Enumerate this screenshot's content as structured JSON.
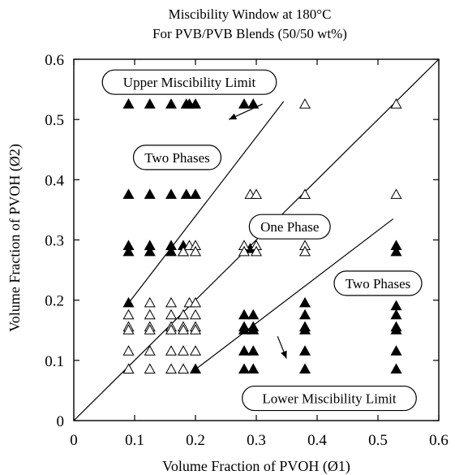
{
  "chart_data": {
    "type": "scatter",
    "title": [
      "Miscibility Window at 180°C",
      "For PVB/PVB Blends (50/50 wt%)"
    ],
    "xlabel": "Volume Fraction of PVOH (Ø1)",
    "ylabel": "Volume Fraction of PVOH (Ø2)",
    "xlim": [
      0,
      0.6
    ],
    "ylim": [
      0,
      0.6
    ],
    "xticks": [
      "0",
      "0.1",
      "0.2",
      "0.3",
      "0.4",
      "0.5",
      "0.6"
    ],
    "yticks": [
      "0",
      "0.1",
      "0.2",
      "0.3",
      "0.4",
      "0.5",
      "0.6"
    ],
    "grid": false,
    "series": [
      {
        "marker": "filled-triangle",
        "points": [
          [
            0.09,
            0.525
          ],
          [
            0.125,
            0.525
          ],
          [
            0.16,
            0.525
          ],
          [
            0.185,
            0.525
          ],
          [
            0.2,
            0.525
          ],
          [
            0.28,
            0.525
          ],
          [
            0.295,
            0.525
          ],
          [
            0.19,
            0.525
          ],
          [
            0.09,
            0.375
          ],
          [
            0.125,
            0.375
          ],
          [
            0.16,
            0.375
          ],
          [
            0.185,
            0.375
          ],
          [
            0.2,
            0.375
          ],
          [
            0.09,
            0.29
          ],
          [
            0.125,
            0.29
          ],
          [
            0.16,
            0.29
          ],
          [
            0.18,
            0.29
          ],
          [
            0.09,
            0.28
          ],
          [
            0.125,
            0.28
          ],
          [
            0.16,
            0.28
          ],
          [
            0.18,
            0.28
          ],
          [
            0.29,
            0.285
          ],
          [
            0.09,
            0.195
          ],
          [
            0.2,
            0.085
          ],
          [
            0.28,
            0.175
          ],
          [
            0.295,
            0.175
          ],
          [
            0.28,
            0.155
          ],
          [
            0.295,
            0.155
          ],
          [
            0.28,
            0.15
          ],
          [
            0.295,
            0.15
          ],
          [
            0.28,
            0.115
          ],
          [
            0.295,
            0.115
          ],
          [
            0.28,
            0.085
          ],
          [
            0.295,
            0.085
          ],
          [
            0.38,
            0.195
          ],
          [
            0.38,
            0.175
          ],
          [
            0.38,
            0.155
          ],
          [
            0.38,
            0.15
          ],
          [
            0.38,
            0.115
          ],
          [
            0.38,
            0.085
          ],
          [
            0.53,
            0.29
          ],
          [
            0.53,
            0.28
          ],
          [
            0.53,
            0.19
          ],
          [
            0.53,
            0.175
          ],
          [
            0.53,
            0.155
          ],
          [
            0.53,
            0.15
          ],
          [
            0.53,
            0.115
          ],
          [
            0.53,
            0.085
          ]
        ]
      },
      {
        "marker": "open-triangle",
        "points": [
          [
            0.38,
            0.525
          ],
          [
            0.53,
            0.525
          ],
          [
            0.29,
            0.375
          ],
          [
            0.3,
            0.375
          ],
          [
            0.38,
            0.375
          ],
          [
            0.53,
            0.375
          ],
          [
            0.19,
            0.29
          ],
          [
            0.2,
            0.29
          ],
          [
            0.18,
            0.28
          ],
          [
            0.2,
            0.28
          ],
          [
            0.28,
            0.29
          ],
          [
            0.3,
            0.29
          ],
          [
            0.28,
            0.28
          ],
          [
            0.3,
            0.28
          ],
          [
            0.38,
            0.29
          ],
          [
            0.38,
            0.28
          ],
          [
            0.09,
            0.175
          ],
          [
            0.125,
            0.175
          ],
          [
            0.16,
            0.175
          ],
          [
            0.18,
            0.175
          ],
          [
            0.2,
            0.175
          ],
          [
            0.16,
            0.195
          ],
          [
            0.125,
            0.195
          ],
          [
            0.19,
            0.195
          ],
          [
            0.2,
            0.195
          ],
          [
            0.09,
            0.155
          ],
          [
            0.125,
            0.155
          ],
          [
            0.16,
            0.155
          ],
          [
            0.18,
            0.155
          ],
          [
            0.2,
            0.155
          ],
          [
            0.09,
            0.15
          ],
          [
            0.125,
            0.15
          ],
          [
            0.16,
            0.15
          ],
          [
            0.18,
            0.15
          ],
          [
            0.2,
            0.15
          ],
          [
            0.09,
            0.115
          ],
          [
            0.125,
            0.115
          ],
          [
            0.16,
            0.115
          ],
          [
            0.18,
            0.115
          ],
          [
            0.2,
            0.115
          ],
          [
            0.09,
            0.085
          ],
          [
            0.125,
            0.085
          ],
          [
            0.16,
            0.085
          ],
          [
            0.18,
            0.085
          ]
        ]
      }
    ],
    "lines": [
      {
        "name": "diagonal",
        "from": [
          0,
          0
        ],
        "to": [
          0.6,
          0.6
        ]
      },
      {
        "name": "upper-boundary",
        "from": [
          0.09,
          0.195
        ],
        "to": [
          0.345,
          0.53
        ]
      },
      {
        "name": "lower-boundary",
        "from": [
          0.2,
          0.085
        ],
        "to": [
          0.525,
          0.335
        ]
      }
    ],
    "annotations": [
      {
        "text": "Upper Miscibility Limit",
        "x": 0.19,
        "y": 0.562,
        "arrow_to": [
          0.255,
          0.5
        ]
      },
      {
        "text": "Two Phases",
        "x": 0.17,
        "y": 0.437
      },
      {
        "text": "One Phase",
        "x": 0.355,
        "y": 0.322
      },
      {
        "text": "Two Phases",
        "x": 0.5,
        "y": 0.228
      },
      {
        "text": "Lower Miscibility Limit",
        "x": 0.42,
        "y": 0.037,
        "arrow_from": [
          0.335,
          0.14
        ]
      }
    ]
  }
}
